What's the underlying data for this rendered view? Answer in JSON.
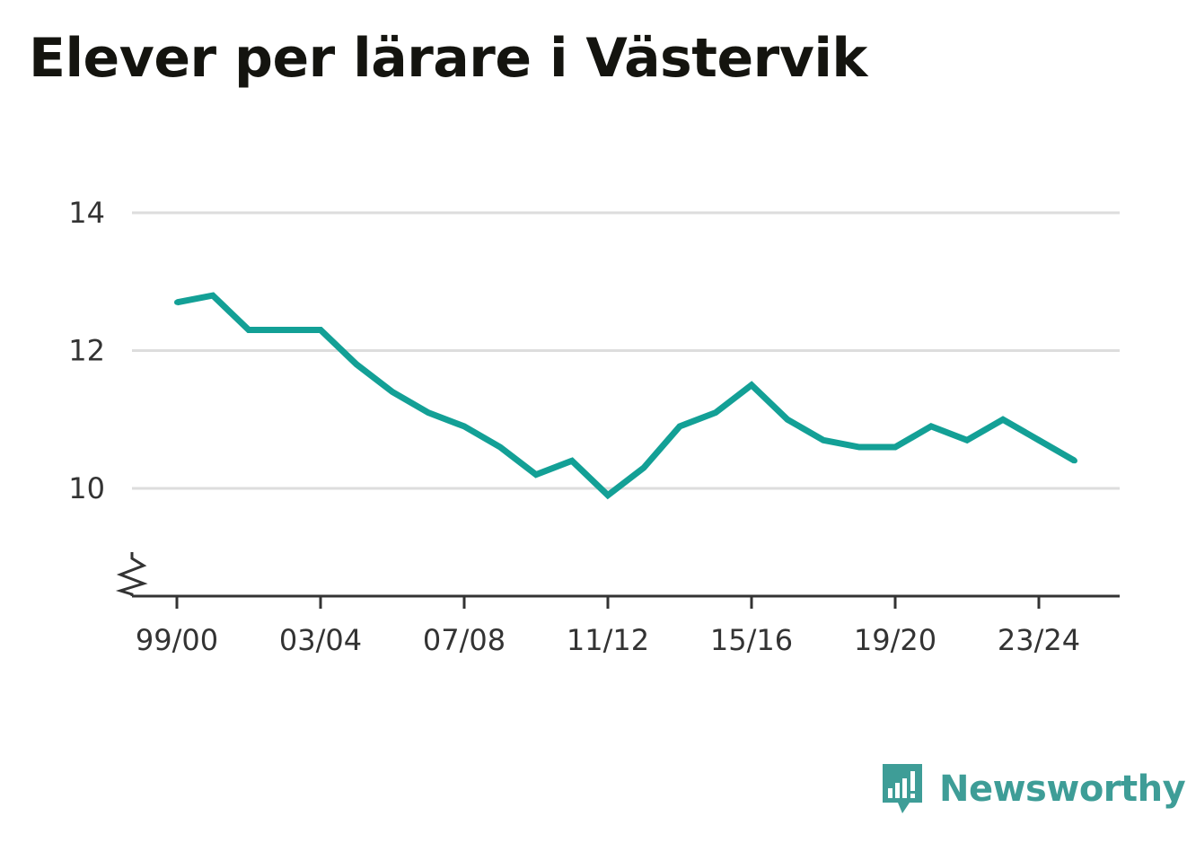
{
  "chart_data": {
    "type": "line",
    "title": "Elever per lärare i Västervik",
    "xlabel": "",
    "ylabel": "",
    "x": [
      "99/00",
      "00/01",
      "01/02",
      "02/03",
      "03/04",
      "04/05",
      "05/06",
      "06/07",
      "07/08",
      "08/09",
      "09/10",
      "10/11",
      "11/12",
      "12/13",
      "13/14",
      "14/15",
      "15/16",
      "16/17",
      "17/18",
      "18/19",
      "19/20",
      "20/21",
      "21/22",
      "22/23",
      "23/24",
      "24/25"
    ],
    "x_tick_labels": [
      "99/00",
      "03/04",
      "07/08",
      "11/12",
      "15/16",
      "19/20",
      "23/24"
    ],
    "y_tick_labels": [
      "10",
      "12",
      "14"
    ],
    "series": [
      {
        "values": [
          12.7,
          12.8,
          12.3,
          12.3,
          12.3,
          11.8,
          11.4,
          11.1,
          10.9,
          10.6,
          10.2,
          10.4,
          9.9,
          10.3,
          10.9,
          11.1,
          11.5,
          11.0,
          10.7,
          10.6,
          10.6,
          10.9,
          10.7,
          11.0,
          10.7,
          10.4
        ],
        "color": "#13a096"
      }
    ],
    "ylim": [
      8.4,
      14
    ],
    "y_ticks": [
      10,
      12,
      14
    ],
    "grid": true,
    "axis_break": true,
    "legend": "none"
  },
  "brand": {
    "name": "Newsworthy",
    "icon": "newsworthy-logo-icon",
    "color": "#3e9d97"
  }
}
